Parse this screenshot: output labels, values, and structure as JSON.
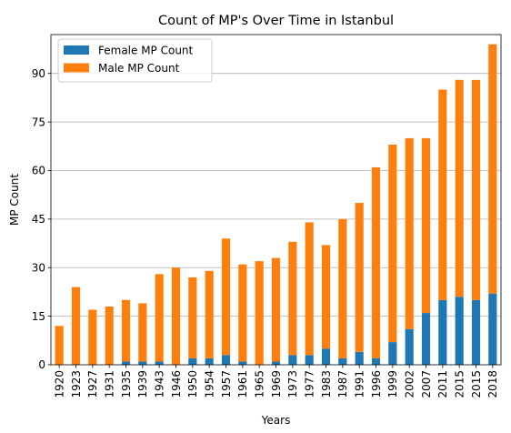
{
  "chart_data": {
    "type": "bar",
    "stacked": true,
    "title": "Count of MP's Over Time in Istanbul",
    "xlabel": "Years",
    "ylabel": "MP Count",
    "categories": [
      "1920",
      "1923",
      "1927",
      "1931",
      "1935",
      "1939",
      "1943",
      "1946",
      "1950",
      "1954",
      "1957",
      "1961",
      "1965",
      "1969",
      "1973",
      "1977",
      "1983",
      "1987",
      "1991",
      "1996",
      "1999",
      "2002",
      "2007",
      "2011",
      "2015",
      "2015",
      "2018"
    ],
    "series": [
      {
        "name": "Female MP Count",
        "color": "#1f77b4",
        "values": [
          0,
          0,
          0,
          0,
          1,
          1,
          1,
          0,
          2,
          2,
          3,
          1,
          0,
          1,
          3,
          3,
          5,
          2,
          4,
          2,
          7,
          11,
          16,
          20,
          21,
          20,
          22
        ]
      },
      {
        "name": "Male MP Count",
        "color": "#ff7f0e",
        "values": [
          12,
          24,
          17,
          18,
          19,
          18,
          27,
          30,
          25,
          27,
          36,
          30,
          32,
          32,
          35,
          41,
          32,
          43,
          46,
          59,
          61,
          59,
          54,
          65,
          67,
          68,
          77
        ]
      }
    ],
    "ylim": [
      0,
      102
    ],
    "yticks": [
      0,
      15,
      30,
      45,
      60,
      75,
      90
    ],
    "grid": "y",
    "legend_position": "top-left"
  }
}
